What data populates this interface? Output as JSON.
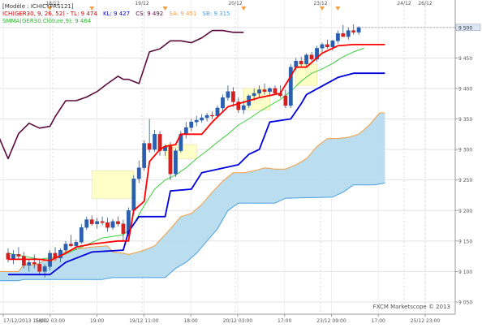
{
  "chart_data": {
    "type": "candlestick",
    "legend": {
      "model": "[Modèle : ICHICYFRS121]",
      "ichimoku": "ICH(GER30, 9, 26, 52) - ",
      "tl": "TL: 9 474",
      "kl": "KL: 9 427",
      "cs": "CS: 9 492",
      "sa": "SA: 9 451",
      "sb": "SB: 9 315",
      "smma": "SMMA(GER30.Clôture,9): 9 464"
    },
    "top_dates": [
      "18/12",
      "19/12",
      "20/12",
      "23/12",
      "24/12",
      "26/12"
    ],
    "x_labels": [
      "17/12/2013 15:00",
      "18/12 03:00",
      "19:00",
      "19/12 11:00",
      "18:00",
      "20/12 03:00",
      "17:00",
      "23/12 09:00",
      "17:00",
      "25/12 23:00"
    ],
    "y_ticks": [
      "9 500",
      "9 450",
      "9 400",
      "9 350",
      "9 300",
      "9 250",
      "9 200",
      "9 150",
      "9 100",
      "9 050"
    ],
    "y_tick_values": [
      9500,
      9450,
      9400,
      9350,
      9300,
      9250,
      9200,
      9150,
      9100,
      9050
    ],
    "ylim": [
      9030,
      9545
    ],
    "last_price": "9 500",
    "watermark": "FXCM Marketscope © 2013",
    "colors": {
      "up": "#2a5fb0",
      "down": "#d42020",
      "tenkan": "#ff0000",
      "kijun": "#0000dd",
      "chikou": "#5a0a3c",
      "smma": "#3ccd3c",
      "senkou_a": "#f59d3f",
      "senkou_b": "#4aa0e0",
      "cloud_bull": "#b4d9ee",
      "cloud_bear": "#f8d2b4",
      "highlight": "#ffffc8",
      "marker": "#f59d3f"
    },
    "candles": [
      [
        9130,
        9138,
        9115,
        9120
      ],
      [
        9120,
        9135,
        9112,
        9128
      ],
      [
        9128,
        9140,
        9120,
        9125
      ],
      [
        9125,
        9132,
        9105,
        9110
      ],
      [
        9110,
        9120,
        9100,
        9115
      ],
      [
        9115,
        9128,
        9105,
        9112
      ],
      [
        9112,
        9120,
        9095,
        9100
      ],
      [
        9100,
        9112,
        9090,
        9108
      ],
      [
        9108,
        9135,
        9102,
        9130
      ],
      [
        9130,
        9140,
        9118,
        9122
      ],
      [
        9122,
        9138,
        9115,
        9135
      ],
      [
        9135,
        9150,
        9128,
        9145
      ],
      [
        9145,
        9160,
        9140,
        9142
      ],
      [
        9142,
        9152,
        9135,
        9148
      ],
      [
        9148,
        9178,
        9145,
        9172
      ],
      [
        9172,
        9190,
        9168,
        9185
      ],
      [
        9185,
        9192,
        9175,
        9178
      ],
      [
        9178,
        9188,
        9170,
        9182
      ],
      [
        9182,
        9190,
        9176,
        9180
      ],
      [
        9180,
        9188,
        9165,
        9172
      ],
      [
        9172,
        9186,
        9168,
        9182
      ],
      [
        9182,
        9190,
        9174,
        9178
      ],
      [
        9178,
        9185,
        9150,
        9162
      ],
      [
        9162,
        9205,
        9158,
        9200
      ],
      [
        9200,
        9258,
        9196,
        9252
      ],
      [
        9252,
        9282,
        9245,
        9270
      ],
      [
        9270,
        9315,
        9265,
        9310
      ],
      [
        9310,
        9350,
        9295,
        9300
      ],
      [
        9300,
        9332,
        9296,
        9325
      ],
      [
        9325,
        9330,
        9290,
        9298
      ],
      [
        9298,
        9308,
        9290,
        9305
      ],
      [
        9305,
        9312,
        9250,
        9260
      ],
      [
        9260,
        9302,
        9255,
        9298
      ],
      [
        9298,
        9330,
        9295,
        9325
      ],
      [
        9325,
        9345,
        9318,
        9336
      ],
      [
        9336,
        9350,
        9330,
        9345
      ],
      [
        9345,
        9355,
        9338,
        9348
      ],
      [
        9348,
        9358,
        9344,
        9352
      ],
      [
        9352,
        9360,
        9346,
        9356
      ],
      [
        9356,
        9362,
        9350,
        9355
      ],
      [
        9355,
        9372,
        9352,
        9368
      ],
      [
        9368,
        9390,
        9362,
        9385
      ],
      [
        9385,
        9405,
        9380,
        9395
      ],
      [
        9395,
        9402,
        9370,
        9378
      ],
      [
        9378,
        9385,
        9360,
        9365
      ],
      [
        9365,
        9380,
        9358,
        9372
      ],
      [
        9372,
        9390,
        9368,
        9388
      ],
      [
        9388,
        9400,
        9380,
        9392
      ],
      [
        9392,
        9405,
        9385,
        9398
      ],
      [
        9398,
        9408,
        9390,
        9395
      ],
      [
        9395,
        9402,
        9388,
        9400
      ],
      [
        9400,
        9405,
        9390,
        9392
      ],
      [
        9392,
        9405,
        9385,
        9388
      ],
      [
        9388,
        9398,
        9368,
        9372
      ],
      [
        9372,
        9440,
        9368,
        9435
      ],
      [
        9435,
        9450,
        9430,
        9445
      ],
      [
        9445,
        9452,
        9436,
        9440
      ],
      [
        9440,
        9458,
        9435,
        9455
      ],
      [
        9455,
        9460,
        9445,
        9448
      ],
      [
        9448,
        9470,
        9444,
        9466
      ],
      [
        9466,
        9475,
        9460,
        9472
      ],
      [
        9472,
        9480,
        9465,
        9468
      ],
      [
        9468,
        9480,
        9462,
        9478
      ],
      [
        9478,
        9495,
        9474,
        9490
      ],
      [
        9490,
        9504,
        9486,
        9485
      ],
      [
        9485,
        9500,
        9480,
        9495
      ],
      [
        9495,
        9505,
        9488,
        9492
      ],
      [
        9492,
        9502,
        9488,
        9500
      ]
    ],
    "tenkan": [
      [
        0,
        9120
      ],
      [
        6,
        9120
      ],
      [
        8,
        9118
      ],
      [
        11,
        9130
      ],
      [
        13,
        9140
      ],
      [
        16,
        9145
      ],
      [
        21,
        9150
      ],
      [
        23,
        9150
      ],
      [
        24,
        9200
      ],
      [
        26,
        9215
      ],
      [
        27,
        9280
      ],
      [
        29,
        9300
      ],
      [
        30,
        9305
      ],
      [
        32,
        9308
      ],
      [
        33,
        9325
      ],
      [
        37,
        9325
      ],
      [
        39,
        9345
      ],
      [
        42,
        9370
      ],
      [
        46,
        9380
      ],
      [
        48,
        9385
      ],
      [
        52,
        9392
      ],
      [
        54,
        9420
      ],
      [
        55,
        9435
      ],
      [
        57,
        9435
      ],
      [
        60,
        9458
      ],
      [
        63,
        9470
      ],
      [
        66,
        9472
      ],
      [
        72,
        9472
      ]
    ],
    "kijun": [
      [
        0,
        9095
      ],
      [
        8,
        9095
      ],
      [
        11,
        9115
      ],
      [
        16,
        9132
      ],
      [
        22,
        9135
      ],
      [
        23,
        9165
      ],
      [
        25,
        9190
      ],
      [
        30,
        9190
      ],
      [
        31,
        9232
      ],
      [
        35,
        9235
      ],
      [
        37,
        9262
      ],
      [
        44,
        9275
      ],
      [
        46,
        9292
      ],
      [
        48,
        9300
      ],
      [
        50,
        9345
      ],
      [
        54,
        9350
      ],
      [
        56,
        9375
      ],
      [
        57,
        9390
      ],
      [
        63,
        9418
      ],
      [
        66,
        9425
      ],
      [
        72,
        9425
      ]
    ],
    "smma": [
      [
        0,
        9130
      ],
      [
        6,
        9120
      ],
      [
        10,
        9125
      ],
      [
        14,
        9140
      ],
      [
        18,
        9155
      ],
      [
        22,
        9160
      ],
      [
        24,
        9178
      ],
      [
        26,
        9208
      ],
      [
        28,
        9235
      ],
      [
        30,
        9250
      ],
      [
        32,
        9258
      ],
      [
        34,
        9270
      ],
      [
        36,
        9285
      ],
      [
        38,
        9298
      ],
      [
        40,
        9312
      ],
      [
        42,
        9325
      ],
      [
        44,
        9340
      ],
      [
        46,
        9350
      ],
      [
        48,
        9362
      ],
      [
        50,
        9372
      ],
      [
        52,
        9382
      ],
      [
        54,
        9395
      ],
      [
        56,
        9412
      ],
      [
        58,
        9425
      ],
      [
        60,
        9432
      ],
      [
        62,
        9441
      ],
      [
        64,
        9452
      ],
      [
        66,
        9460
      ],
      [
        68,
        9466
      ]
    ],
    "chikou": [
      [
        -4,
        9352
      ],
      [
        -2,
        9325
      ],
      [
        0,
        9285
      ],
      [
        2,
        9326
      ],
      [
        4,
        9343
      ],
      [
        6,
        9335
      ],
      [
        8,
        9338
      ],
      [
        9,
        9354
      ],
      [
        11,
        9380
      ],
      [
        13,
        9380
      ],
      [
        15,
        9386
      ],
      [
        17,
        9395
      ],
      [
        19,
        9408
      ],
      [
        21,
        9420
      ],
      [
        22,
        9415
      ],
      [
        23,
        9415
      ],
      [
        25,
        9408
      ],
      [
        27,
        9460
      ],
      [
        29,
        9465
      ],
      [
        31,
        9478
      ],
      [
        33,
        9478
      ],
      [
        35,
        9475
      ],
      [
        37,
        9483
      ],
      [
        39,
        9495
      ],
      [
        41,
        9495
      ],
      [
        43,
        9492
      ],
      [
        45,
        9492
      ]
    ],
    "senkou_a": [
      [
        -6,
        9100
      ],
      [
        2,
        9100
      ],
      [
        3,
        9112
      ],
      [
        5,
        9110
      ],
      [
        7,
        9118
      ],
      [
        9,
        9118
      ],
      [
        10,
        9130
      ],
      [
        12,
        9135
      ],
      [
        14,
        9138
      ],
      [
        16,
        9140
      ],
      [
        19,
        9142
      ],
      [
        20,
        9132
      ],
      [
        22,
        9130
      ],
      [
        23,
        9128
      ],
      [
        24,
        9130
      ],
      [
        26,
        9135
      ],
      [
        28,
        9142
      ],
      [
        31,
        9170
      ],
      [
        33,
        9190
      ],
      [
        35,
        9195
      ],
      [
        37,
        9210
      ],
      [
        39,
        9230
      ],
      [
        41,
        9248
      ],
      [
        43,
        9262
      ],
      [
        45,
        9262
      ],
      [
        47,
        9265
      ],
      [
        49,
        9270
      ],
      [
        51,
        9268
      ],
      [
        53,
        9268
      ],
      [
        55,
        9275
      ],
      [
        57,
        9285
      ],
      [
        59,
        9305
      ],
      [
        61,
        9318
      ],
      [
        63,
        9318
      ],
      [
        65,
        9320
      ],
      [
        67,
        9325
      ],
      [
        69,
        9340
      ],
      [
        71,
        9360
      ],
      [
        72,
        9360
      ]
    ],
    "senkou_b": [
      [
        -6,
        9085
      ],
      [
        2,
        9085
      ],
      [
        3,
        9087
      ],
      [
        18,
        9087
      ],
      [
        20,
        9090
      ],
      [
        30,
        9090
      ],
      [
        32,
        9105
      ],
      [
        34,
        9115
      ],
      [
        36,
        9130
      ],
      [
        38,
        9150
      ],
      [
        40,
        9170
      ],
      [
        42,
        9200
      ],
      [
        44,
        9212
      ],
      [
        51,
        9212
      ],
      [
        53,
        9220
      ],
      [
        62,
        9222
      ],
      [
        64,
        9230
      ],
      [
        66,
        9242
      ],
      [
        70,
        9242
      ],
      [
        72,
        9245
      ]
    ],
    "highlights": [
      [
        16,
        24,
        9265,
        9220
      ],
      [
        30,
        36,
        9308,
        9285
      ],
      [
        45,
        50,
        9400,
        9365
      ],
      [
        55,
        59,
        9440,
        9405
      ]
    ],
    "markers": [
      8,
      16,
      30,
      45,
      60,
      63
    ]
  }
}
